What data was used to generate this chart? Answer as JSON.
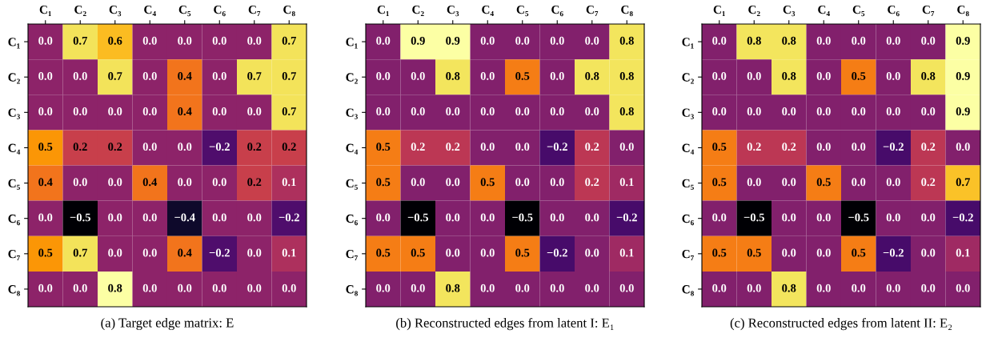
{
  "chart_data": [
    {
      "type": "heatmap",
      "xlabel": "(a) Target edge matrix: E",
      "categories": [
        "C₁",
        "C₂",
        "C₃",
        "C₄",
        "C₅",
        "C₆",
        "C₇",
        "C₈"
      ],
      "y_categories": [
        "C₁",
        "C₂",
        "C₃",
        "C₄",
        "C₅",
        "C₆",
        "C₇",
        "C₈"
      ],
      "cells": [
        [
          0.0,
          0.7,
          0.6,
          0.0,
          0.0,
          0.0,
          0.0,
          0.7
        ],
        [
          0.0,
          0.0,
          0.7,
          0.0,
          0.4,
          0.0,
          0.7,
          0.7
        ],
        [
          0.0,
          0.0,
          0.0,
          0.0,
          0.4,
          0.0,
          0.0,
          0.7
        ],
        [
          0.5,
          0.2,
          0.2,
          0.0,
          0.0,
          -0.2,
          0.2,
          0.2
        ],
        [
          0.4,
          0.0,
          0.0,
          0.4,
          0.0,
          0.0,
          0.2,
          0.1
        ],
        [
          0.0,
          -0.5,
          0.0,
          0.0,
          -0.4,
          0.0,
          0.0,
          -0.2
        ],
        [
          0.5,
          0.7,
          0.0,
          0.0,
          0.4,
          -0.2,
          0.0,
          0.1
        ],
        [
          0.0,
          0.0,
          0.8,
          0.0,
          0.0,
          0.0,
          0.0,
          0.0
        ]
      ],
      "cell_labels": [
        [
          "0.0",
          "0.7",
          "0.6",
          "0.0",
          "0.0",
          "0.0",
          "0.0",
          "0.7"
        ],
        [
          "0.0",
          "0.0",
          "0.7",
          "0.0",
          "0.4",
          "0.0",
          "0.7",
          "0.7"
        ],
        [
          "0.0",
          "0.0",
          "0.0",
          "0.0",
          "0.4",
          "0.0",
          "0.0",
          "0.7"
        ],
        [
          "0.5",
          "0.2",
          "0.2",
          "0.0",
          "0.0",
          "−0.2",
          "0.2",
          "0.2"
        ],
        [
          "0.4",
          "0.0",
          "0.0",
          "0.4",
          "0.0",
          "0.0",
          "0.2",
          "0.1"
        ],
        [
          "0.0",
          "−0.5",
          "0.0",
          "0.0",
          "−0.4",
          "0.0",
          "0.0",
          "−0.2"
        ],
        [
          "0.5",
          "0.7",
          "0.0",
          "0.0",
          "0.4",
          "−0.2",
          "0.0",
          "0.1"
        ],
        [
          "0.0",
          "0.0",
          "0.8",
          "0.0",
          "0.0",
          "0.0",
          "0.0",
          "0.0"
        ]
      ]
    },
    {
      "type": "heatmap",
      "xlabel": "(b) Reconstructed edges from latent I: E₁",
      "categories": [
        "C₁",
        "C₂",
        "C₃",
        "C₄",
        "C₅",
        "C₆",
        "C₇",
        "C₈"
      ],
      "y_categories": [
        "C₁",
        "C₂",
        "C₃",
        "C₄",
        "C₅",
        "C₆",
        "C₇",
        "C₈"
      ],
      "cells": [
        [
          0.0,
          0.9,
          0.9,
          0.0,
          0.0,
          0.0,
          0.0,
          0.8
        ],
        [
          0.0,
          0.0,
          0.8,
          0.0,
          0.5,
          0.0,
          0.8,
          0.8
        ],
        [
          0.0,
          0.0,
          0.0,
          0.0,
          0.0,
          0.0,
          0.0,
          0.8
        ],
        [
          0.5,
          0.2,
          0.2,
          0.0,
          0.0,
          -0.2,
          0.2,
          0.0
        ],
        [
          0.5,
          0.0,
          0.0,
          0.5,
          0.0,
          0.0,
          0.2,
          0.1
        ],
        [
          0.0,
          -0.5,
          0.0,
          0.0,
          -0.5,
          0.0,
          0.0,
          -0.2
        ],
        [
          0.5,
          0.5,
          0.0,
          0.0,
          0.5,
          -0.2,
          0.0,
          0.1
        ],
        [
          0.0,
          0.0,
          0.8,
          0.0,
          0.0,
          0.0,
          0.0,
          0.0
        ]
      ],
      "cell_labels": [
        [
          "0.0",
          "0.9",
          "0.9",
          "0.0",
          "0.0",
          "0.0",
          "0.0",
          "0.8"
        ],
        [
          "0.0",
          "0.0",
          "0.8",
          "0.0",
          "0.5",
          "0.0",
          "0.8",
          "0.8"
        ],
        [
          "0.0",
          "0.0",
          "0.0",
          "0.0",
          "0.0",
          "0.0",
          "0.0",
          "0.8"
        ],
        [
          "0.5",
          "0.2",
          "0.2",
          "0.0",
          "0.0",
          "−0.2",
          "0.2",
          "0.0"
        ],
        [
          "0.5",
          "0.0",
          "0.0",
          "0.5",
          "0.0",
          "0.0",
          "0.2",
          "0.1"
        ],
        [
          "0.0",
          "−0.5",
          "0.0",
          "0.0",
          "−0.5",
          "0.0",
          "0.0",
          "−0.2"
        ],
        [
          "0.5",
          "0.5",
          "0.0",
          "0.0",
          "0.5",
          "−0.2",
          "0.0",
          "0.1"
        ],
        [
          "0.0",
          "0.0",
          "0.8",
          "0.0",
          "0.0",
          "0.0",
          "0.0",
          "0.0"
        ]
      ]
    },
    {
      "type": "heatmap",
      "xlabel": "(c) Reconstructed edges from latent II: E₂",
      "categories": [
        "C₁",
        "C₂",
        "C₃",
        "C₄",
        "C₅",
        "C₆",
        "C₇",
        "C₈"
      ],
      "y_categories": [
        "C₁",
        "C₂",
        "C₃",
        "C₄",
        "C₅",
        "C₆",
        "C₇",
        "C₈"
      ],
      "cells": [
        [
          0.0,
          0.8,
          0.8,
          0.0,
          0.0,
          0.0,
          0.0,
          0.9
        ],
        [
          0.0,
          0.0,
          0.8,
          0.0,
          0.5,
          0.0,
          0.8,
          0.9
        ],
        [
          0.0,
          0.0,
          0.0,
          0.0,
          0.0,
          0.0,
          0.0,
          0.9
        ],
        [
          0.5,
          0.2,
          0.2,
          0.0,
          0.0,
          -0.2,
          0.2,
          0.0
        ],
        [
          0.5,
          0.0,
          0.0,
          0.5,
          0.0,
          0.0,
          0.2,
          0.7
        ],
        [
          0.0,
          -0.5,
          0.0,
          0.0,
          -0.5,
          0.0,
          0.0,
          -0.2
        ],
        [
          0.5,
          0.5,
          0.0,
          0.0,
          0.5,
          -0.2,
          0.0,
          0.1
        ],
        [
          0.0,
          0.0,
          0.8,
          0.0,
          0.0,
          0.0,
          0.0,
          0.0
        ]
      ],
      "cell_labels": [
        [
          "0.0",
          "0.8",
          "0.8",
          "0.0",
          "0.0",
          "0.0",
          "0.0",
          "0.9"
        ],
        [
          "0.0",
          "0.0",
          "0.8",
          "0.0",
          "0.5",
          "0.0",
          "0.8",
          "0.9"
        ],
        [
          "0.0",
          "0.0",
          "0.0",
          "0.0",
          "0.0",
          "0.0",
          "0.0",
          "0.9"
        ],
        [
          "0.5",
          "0.2",
          "0.2",
          "0.0",
          "0.0",
          "−0.2",
          "0.2",
          "0.0"
        ],
        [
          "0.5",
          "0.0",
          "0.0",
          "0.5",
          "0.0",
          "0.0",
          "0.2",
          "0.7"
        ],
        [
          "0.0",
          "−0.5",
          "0.0",
          "0.0",
          "−0.5",
          "0.0",
          "0.0",
          "−0.2"
        ],
        [
          "0.5",
          "0.5",
          "0.0",
          "0.0",
          "0.5",
          "−0.2",
          "0.0",
          "0.1"
        ],
        [
          "0.0",
          "0.0",
          "0.8",
          "0.0",
          "0.0",
          "0.0",
          "0.0",
          "0.0"
        ]
      ]
    }
  ]
}
